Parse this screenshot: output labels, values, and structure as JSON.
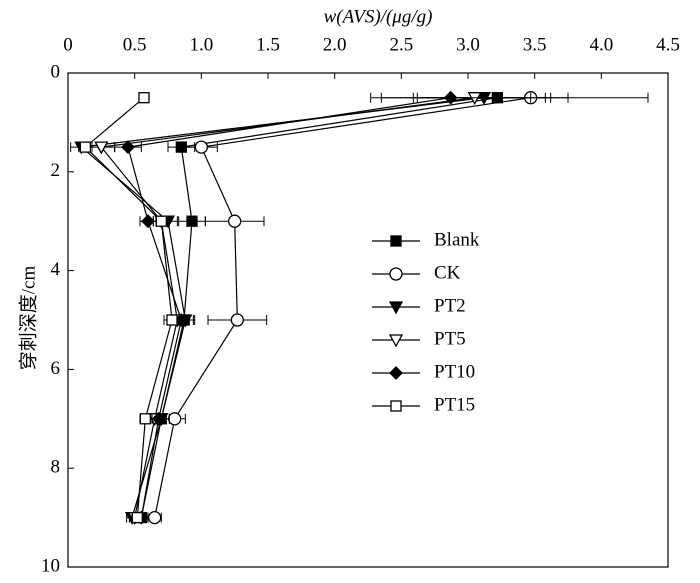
{
  "chart_data": {
    "type": "line",
    "title": "w(AVS)/(μg/g)",
    "y_label": "穿刺深度/cm",
    "y": [
      0.5,
      1.5,
      3,
      5,
      7,
      9
    ],
    "xlim": [
      0,
      4.5
    ],
    "xticks": [
      0,
      0.5,
      {
        "value": 1,
        "label": "1.0"
      },
      1.5,
      {
        "value": 2,
        "label": "2.0"
      },
      2.5,
      {
        "value": 3,
        "label": "3.0"
      },
      3.5,
      {
        "value": 4,
        "label": "4.0"
      },
      4.5
    ],
    "ylim": [
      0,
      10
    ],
    "yticks": [
      0,
      2,
      4,
      6,
      8,
      10
    ],
    "series": [
      {
        "name": "Blank",
        "color": "#000",
        "marker": "square",
        "filled": true,
        "values": [
          3.22,
          0.85,
          0.93,
          0.87,
          0.7,
          0.55
        ],
        "errors": [
          0.36,
          0.1,
          0.1,
          0.07,
          0.06,
          0.05
        ]
      },
      {
        "name": "CK",
        "color": "#000",
        "marker": "circle",
        "filled": false,
        "values": [
          3.47,
          1.0,
          1.25,
          1.27,
          0.8,
          0.65
        ],
        "errors": [
          0.88,
          0.12,
          0.22,
          0.22,
          0.08,
          0.05
        ]
      },
      {
        "name": "PT2",
        "color": "#000",
        "marker": "triangle-down",
        "filled": true,
        "values": [
          3.12,
          0.1,
          0.75,
          0.88,
          0.7,
          0.48
        ],
        "errors": [
          0.5,
          0.08,
          0.07,
          0.07,
          0.06,
          0.04
        ]
      },
      {
        "name": "PT5",
        "color": "#000",
        "marker": "triangle-down",
        "filled": false,
        "values": [
          3.05,
          0.25,
          0.7,
          0.82,
          0.65,
          0.5
        ],
        "errors": [
          0.7,
          0.1,
          0.06,
          0.06,
          0.05,
          0.04
        ]
      },
      {
        "name": "PT10",
        "color": "#000",
        "marker": "diamond",
        "filled": true,
        "values": [
          2.87,
          0.45,
          0.6,
          0.85,
          0.68,
          0.55
        ],
        "errors": [
          0.6,
          0.1,
          0.06,
          0.06,
          0.05,
          0.04
        ]
      },
      {
        "name": "PT15",
        "color": "#000",
        "marker": "square",
        "filled": false,
        "values": [
          0.57,
          0.13,
          0.7,
          0.78,
          0.58,
          0.52
        ],
        "errors": [
          0.03,
          0.05,
          0.06,
          0.06,
          0.04,
          0.04
        ]
      }
    ]
  }
}
